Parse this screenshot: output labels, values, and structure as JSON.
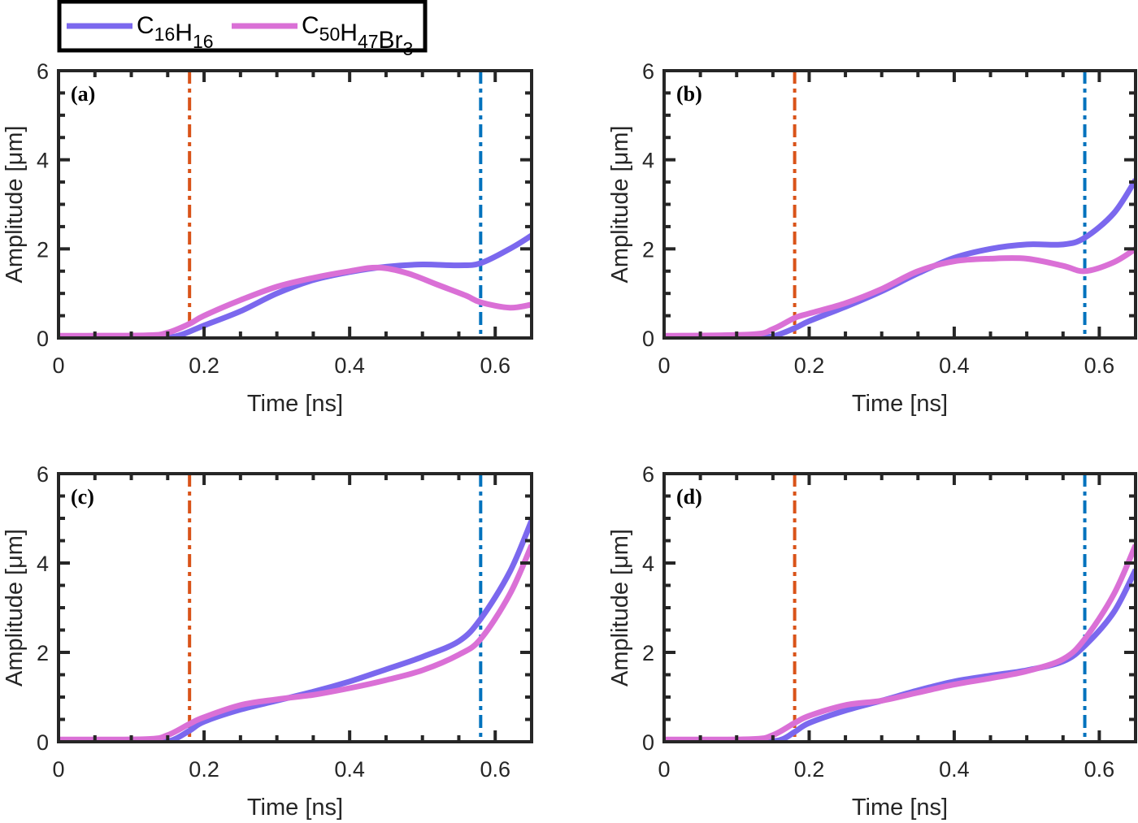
{
  "chart_data": {
    "type": "line",
    "legend": {
      "placement": "top-left",
      "entries": [
        {
          "name": "C16H16",
          "base": [
            "C",
            "H"
          ],
          "subs": [
            "16",
            "16"
          ],
          "color": "#7b68ee"
        },
        {
          "name": "C50H47Br3",
          "base": [
            "C",
            "H",
            "Br"
          ],
          "subs": [
            "50",
            "47",
            "3"
          ],
          "color": "#da70d6"
        }
      ]
    },
    "shared": {
      "xlabel": "Time [ns]",
      "ylabel": "Amplitude [μm]",
      "xlim": [
        0,
        0.65
      ],
      "ylim": [
        0,
        6
      ],
      "xticks": [
        0,
        0.2,
        0.4,
        0.6
      ],
      "xtick_labels": [
        "0",
        "0.2",
        "0.4",
        "0.6"
      ],
      "yticks": [
        0,
        2,
        4,
        6
      ],
      "ytick_labels": [
        "0",
        "2",
        "4",
        "6"
      ],
      "x_minor_step": 0.05,
      "y_minor_step": 0.5,
      "grid": false,
      "vlines": [
        {
          "x": 0.18,
          "color": "#d95319",
          "style": "dash-dot"
        },
        {
          "x": 0.58,
          "color": "#0072bd",
          "style": "dash-dot"
        }
      ]
    },
    "panels": [
      {
        "label": "(a)",
        "series": [
          {
            "name": "C16H16",
            "x": [
              0,
              0.1,
              0.15,
              0.17,
              0.2,
              0.25,
              0.3,
              0.35,
              0.4,
              0.45,
              0.5,
              0.55,
              0.58,
              0.62,
              0.65
            ],
            "y": [
              0.02,
              0.02,
              0.02,
              0.08,
              0.28,
              0.6,
              1.0,
              1.3,
              1.48,
              1.6,
              1.65,
              1.63,
              1.68,
              2.0,
              2.3
            ]
          },
          {
            "name": "C50H47Br3",
            "x": [
              0,
              0.12,
              0.15,
              0.18,
              0.2,
              0.25,
              0.3,
              0.35,
              0.4,
              0.44,
              0.48,
              0.52,
              0.56,
              0.58,
              0.62,
              0.65
            ],
            "y": [
              0.05,
              0.06,
              0.12,
              0.32,
              0.5,
              0.85,
              1.15,
              1.35,
              1.5,
              1.58,
              1.45,
              1.2,
              0.95,
              0.8,
              0.68,
              0.75
            ]
          }
        ]
      },
      {
        "label": "(b)",
        "series": [
          {
            "name": "C16H16",
            "x": [
              0,
              0.12,
              0.15,
              0.18,
              0.2,
              0.25,
              0.3,
              0.35,
              0.4,
              0.45,
              0.5,
              0.55,
              0.58,
              0.62,
              0.65
            ],
            "y": [
              0.02,
              0.02,
              0.04,
              0.22,
              0.38,
              0.7,
              1.05,
              1.45,
              1.8,
              2.0,
              2.1,
              2.1,
              2.25,
              2.8,
              3.55
            ]
          },
          {
            "name": "C50H47Br3",
            "x": [
              0,
              0.12,
              0.15,
              0.18,
              0.2,
              0.25,
              0.3,
              0.35,
              0.4,
              0.45,
              0.5,
              0.55,
              0.58,
              0.62,
              0.65
            ],
            "y": [
              0.05,
              0.08,
              0.2,
              0.45,
              0.55,
              0.78,
              1.1,
              1.5,
              1.72,
              1.78,
              1.78,
              1.62,
              1.5,
              1.7,
              2.0
            ]
          }
        ]
      },
      {
        "label": "(c)",
        "series": [
          {
            "name": "C16H16",
            "x": [
              0,
              0.13,
              0.155,
              0.18,
              0.2,
              0.25,
              0.3,
              0.35,
              0.4,
              0.45,
              0.5,
              0.55,
              0.58,
              0.62,
              0.65
            ],
            "y": [
              0.02,
              0.02,
              0.03,
              0.25,
              0.45,
              0.72,
              0.92,
              1.12,
              1.35,
              1.62,
              1.9,
              2.25,
              2.75,
              3.8,
              4.95
            ]
          },
          {
            "name": "C50H47Br3",
            "x": [
              0,
              0.12,
              0.15,
              0.18,
              0.2,
              0.25,
              0.3,
              0.35,
              0.4,
              0.45,
              0.5,
              0.55,
              0.58,
              0.62,
              0.65
            ],
            "y": [
              0.05,
              0.06,
              0.15,
              0.4,
              0.55,
              0.82,
              0.95,
              1.05,
              1.2,
              1.38,
              1.6,
              1.95,
              2.3,
              3.3,
              4.4
            ]
          }
        ]
      },
      {
        "label": "(d)",
        "series": [
          {
            "name": "C16H16",
            "x": [
              0,
              0.13,
              0.16,
              0.18,
              0.2,
              0.25,
              0.3,
              0.35,
              0.4,
              0.45,
              0.5,
              0.55,
              0.58,
              0.62,
              0.65
            ],
            "y": [
              0.02,
              0.02,
              0.04,
              0.22,
              0.42,
              0.7,
              0.92,
              1.15,
              1.35,
              1.48,
              1.6,
              1.8,
              2.15,
              2.9,
              3.85
            ]
          },
          {
            "name": "C50H47Br3",
            "x": [
              0,
              0.12,
              0.15,
              0.18,
              0.2,
              0.25,
              0.3,
              0.35,
              0.4,
              0.45,
              0.5,
              0.55,
              0.58,
              0.62,
              0.65
            ],
            "y": [
              0.05,
              0.06,
              0.15,
              0.42,
              0.58,
              0.82,
              0.92,
              1.1,
              1.28,
              1.42,
              1.58,
              1.85,
              2.3,
              3.3,
              4.4
            ]
          }
        ]
      }
    ]
  }
}
